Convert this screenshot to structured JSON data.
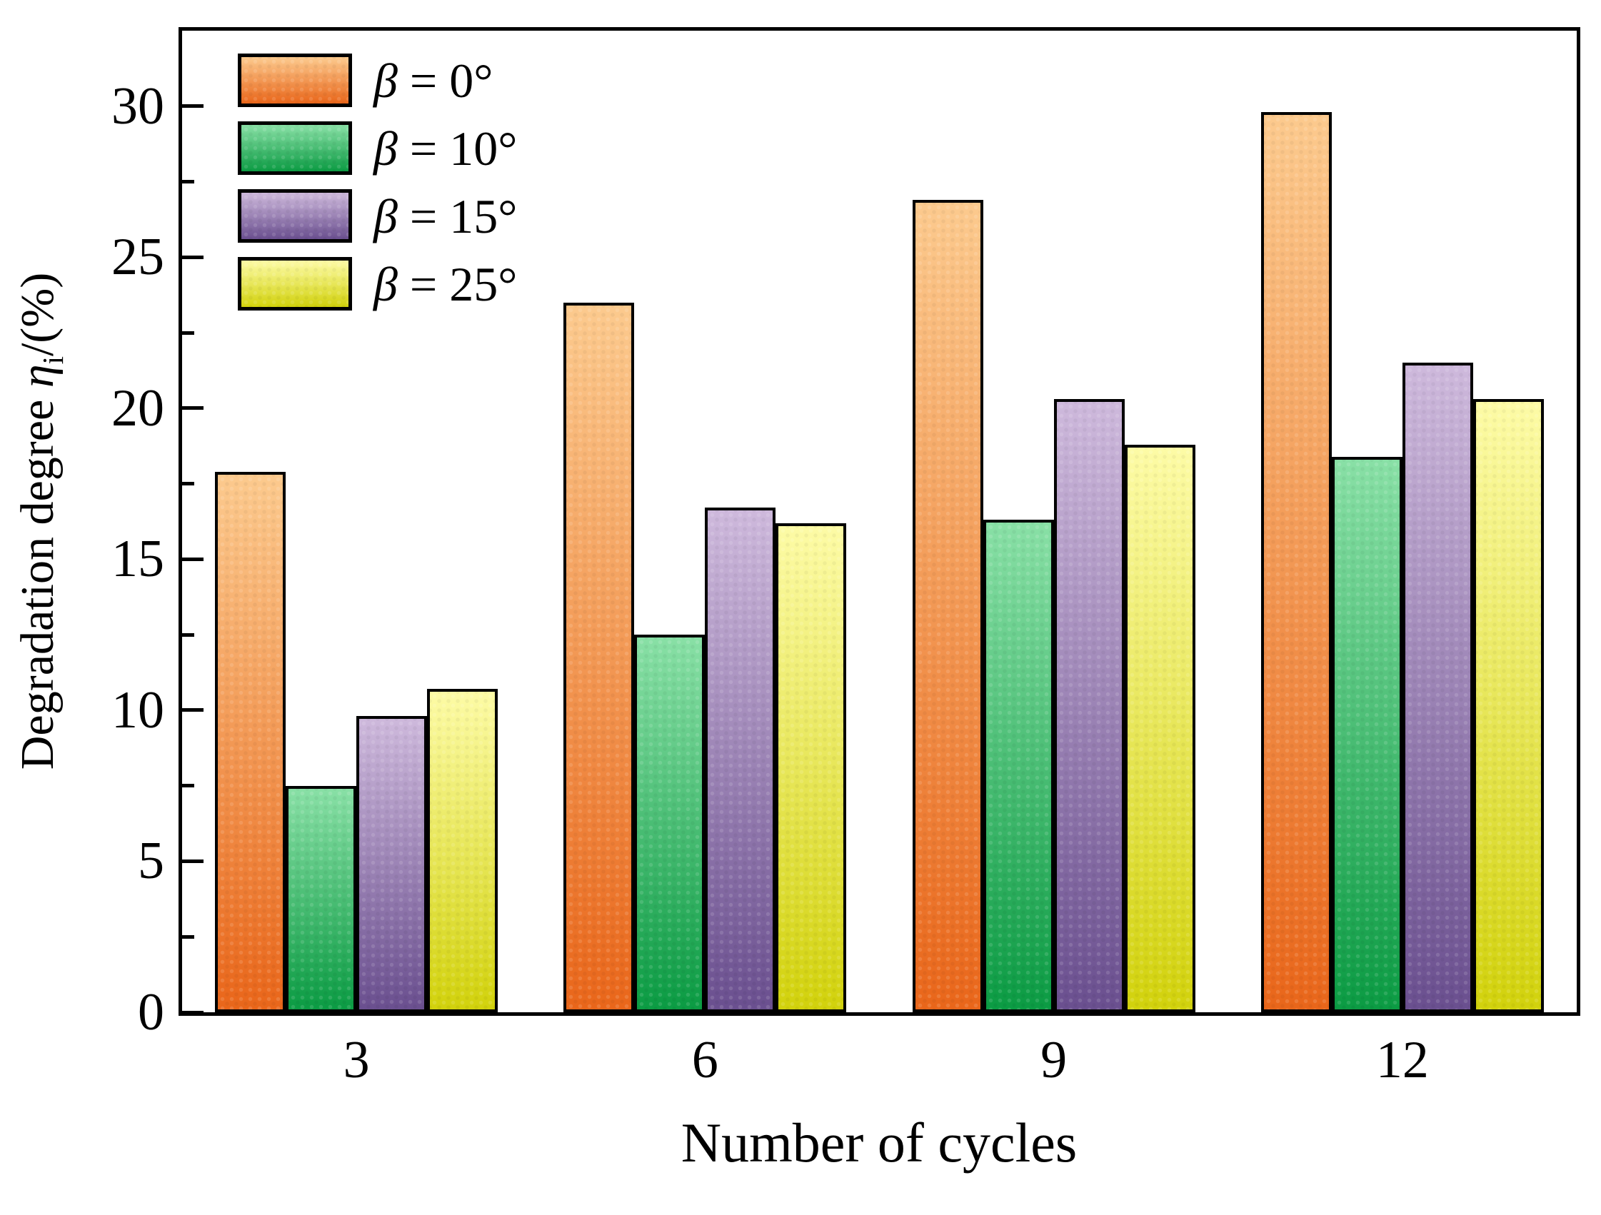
{
  "chart_data": {
    "type": "bar",
    "categories": [
      "3",
      "6",
      "9",
      "12"
    ],
    "series": [
      {
        "name": "β = 0°",
        "values": [
          17.9,
          23.5,
          26.9,
          29.8
        ],
        "color_top": "#FCCA8E",
        "color_bottom": "#E9661A"
      },
      {
        "name": "β = 10°",
        "values": [
          7.5,
          12.5,
          16.3,
          18.4
        ],
        "color_top": "#89E0A6",
        "color_bottom": "#0B9B43"
      },
      {
        "name": "β = 15°",
        "values": [
          9.8,
          16.7,
          20.3,
          21.5
        ],
        "color_top": "#CEB9DC",
        "color_bottom": "#6A4F8F"
      },
      {
        "name": "β = 25°",
        "values": [
          10.7,
          16.2,
          18.8,
          20.3
        ],
        "color_top": "#FDFBA6",
        "color_bottom": "#D2D20C"
      }
    ],
    "title": "",
    "xlabel": "Number of cycles",
    "ylabel": "Degradation degree ηi/(%)",
    "ylim": [
      0,
      32.5
    ],
    "yticks_major": [
      0,
      5,
      10,
      15,
      20,
      25,
      30
    ],
    "yticks_minor": [
      2.5,
      7.5,
      12.5,
      17.5,
      22.5,
      27.5
    ],
    "legend_position": "top-left",
    "grid": false,
    "bar_border_color": "#000000",
    "axis_color": "#000000",
    "background_color": "#FFFFFF"
  },
  "axis": {
    "ylabel_prefix": "Degradation degree ",
    "ylabel_symbol": "η",
    "ylabel_subscript": "i",
    "ylabel_suffix": "/(%)",
    "xlabel": "Number of cycles"
  }
}
